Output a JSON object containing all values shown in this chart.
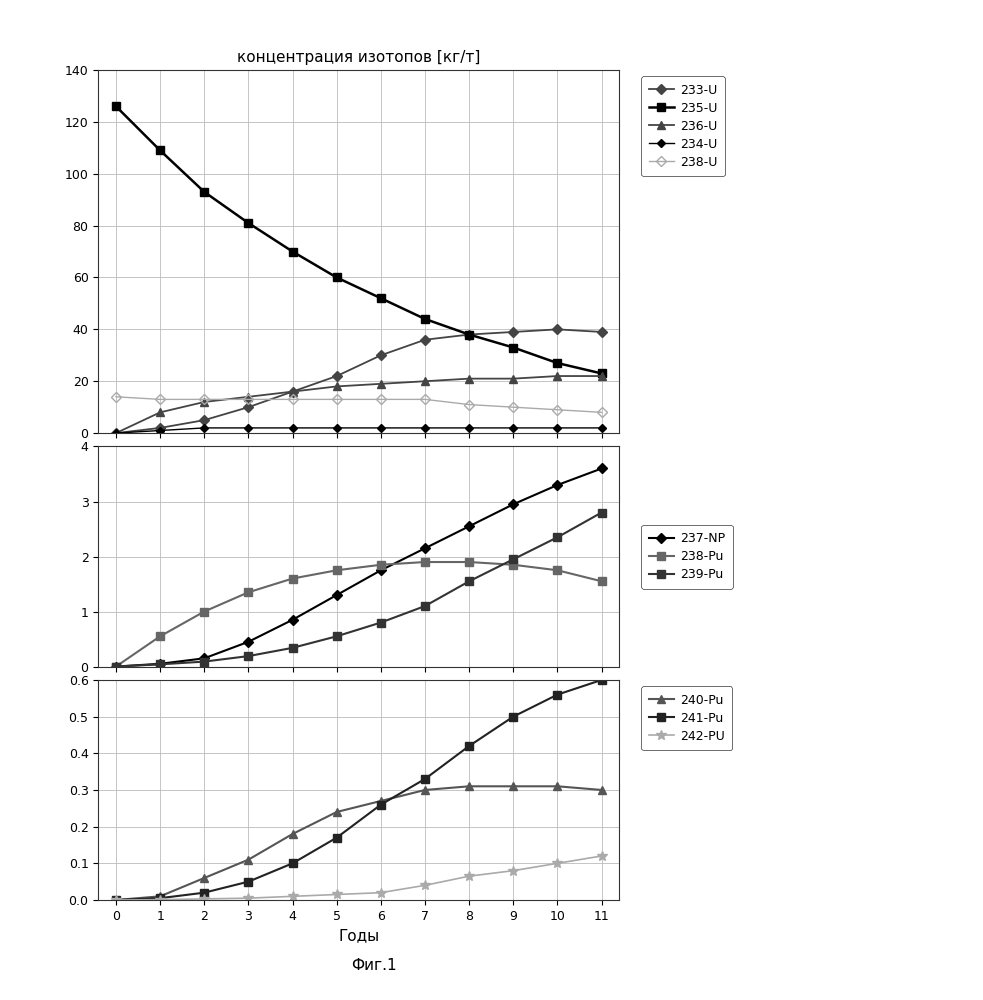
{
  "title": "концентрация изотопов [кг/т]",
  "xlabel": "Годы",
  "figure_note": "Фиг.1",
  "x": [
    0,
    1,
    2,
    3,
    4,
    5,
    6,
    7,
    8,
    9,
    10,
    11
  ],
  "panel1": {
    "ylim": [
      0,
      140
    ],
    "yticks": [
      0,
      20,
      40,
      60,
      80,
      100,
      120,
      140
    ],
    "series": {
      "233-U": {
        "y": [
          0,
          2,
          5,
          10,
          16,
          22,
          30,
          36,
          38,
          39,
          40,
          39
        ],
        "color": "#444444",
        "marker": "D",
        "ms": 5,
        "lw": 1.3,
        "mfc": "#444444"
      },
      "235-U": {
        "y": [
          126,
          109,
          93,
          81,
          70,
          60,
          52,
          44,
          38,
          33,
          27,
          23
        ],
        "color": "#000000",
        "marker": "s",
        "ms": 6,
        "lw": 1.8,
        "mfc": "#000000"
      },
      "236-U": {
        "y": [
          0,
          8,
          12,
          14,
          16,
          18,
          19,
          20,
          21,
          21,
          22,
          22
        ],
        "color": "#444444",
        "marker": "^",
        "ms": 6,
        "lw": 1.3,
        "mfc": "#444444"
      },
      "234-U": {
        "y": [
          0,
          1,
          2,
          2,
          2,
          2,
          2,
          2,
          2,
          2,
          2,
          2
        ],
        "color": "#000000",
        "marker": "D",
        "ms": 4,
        "lw": 1.0,
        "mfc": "#000000"
      },
      "238-U": {
        "y": [
          14,
          13,
          13,
          13,
          13,
          13,
          13,
          13,
          11,
          10,
          9,
          8
        ],
        "color": "#aaaaaa",
        "marker": "D",
        "ms": 5,
        "lw": 1.0,
        "mfc": "none"
      }
    },
    "legend_order": [
      "233-U",
      "235-U",
      "236-U",
      "234-U",
      "238-U"
    ]
  },
  "panel2": {
    "ylim": [
      0,
      4
    ],
    "yticks": [
      0,
      1,
      2,
      3,
      4
    ],
    "series": {
      "237-NP": {
        "y": [
          0,
          0.05,
          0.15,
          0.45,
          0.85,
          1.3,
          1.75,
          2.15,
          2.55,
          2.95,
          3.3,
          3.6
        ],
        "color": "#000000",
        "marker": "D",
        "ms": 5,
        "lw": 1.5,
        "mfc": "#000000"
      },
      "238-Pu": {
        "y": [
          0,
          0.55,
          1.0,
          1.35,
          1.6,
          1.75,
          1.85,
          1.9,
          1.9,
          1.85,
          1.75,
          1.55
        ],
        "color": "#666666",
        "marker": "s",
        "ms": 6,
        "lw": 1.5,
        "mfc": "#666666"
      },
      "239-Pu": {
        "y": [
          0,
          0.04,
          0.09,
          0.19,
          0.34,
          0.55,
          0.8,
          1.1,
          1.55,
          1.95,
          2.35,
          2.8
        ],
        "color": "#333333",
        "marker": "s",
        "ms": 6,
        "lw": 1.5,
        "mfc": "#333333"
      }
    },
    "legend_order": [
      "237-NP",
      "238-Pu",
      "239-Pu"
    ]
  },
  "panel3": {
    "ylim": [
      0,
      0.6
    ],
    "yticks": [
      0.0,
      0.1,
      0.2,
      0.3,
      0.4,
      0.5,
      0.6
    ],
    "series": {
      "240-Pu": {
        "y": [
          0,
          0.01,
          0.06,
          0.11,
          0.18,
          0.24,
          0.27,
          0.3,
          0.31,
          0.31,
          0.31,
          0.3
        ],
        "color": "#555555",
        "marker": "^",
        "ms": 6,
        "lw": 1.5,
        "mfc": "#555555"
      },
      "241-Pu": {
        "y": [
          0,
          0.005,
          0.02,
          0.05,
          0.1,
          0.17,
          0.26,
          0.33,
          0.42,
          0.5,
          0.56,
          0.6
        ],
        "color": "#222222",
        "marker": "s",
        "ms": 6,
        "lw": 1.5,
        "mfc": "#222222"
      },
      "242-PU": {
        "y": [
          0,
          0.001,
          0.003,
          0.005,
          0.01,
          0.015,
          0.02,
          0.04,
          0.065,
          0.08,
          0.1,
          0.12
        ],
        "color": "#aaaaaa",
        "marker": "*",
        "ms": 7,
        "lw": 1.2,
        "mfc": "#aaaaaa"
      }
    },
    "legend_order": [
      "240-Pu",
      "241-Pu",
      "242-PU"
    ]
  }
}
